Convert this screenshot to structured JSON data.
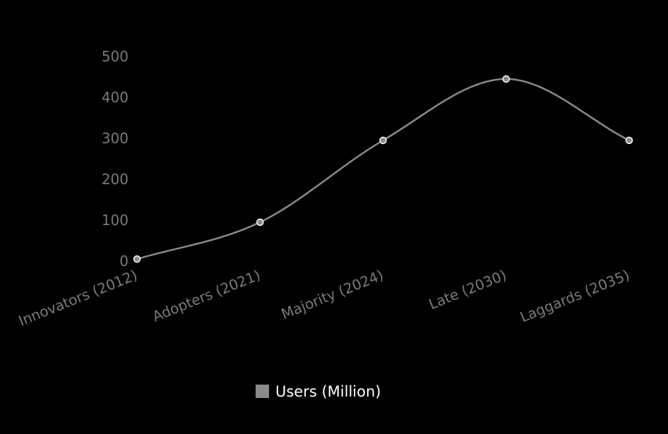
{
  "chart_data": {
    "type": "line",
    "title": "",
    "xlabel": "",
    "ylabel": "",
    "categories": [
      "Innovators (2012)",
      "Adopters (2021)",
      "Majority (2024)",
      "Late (2030)",
      "Laggards (2035)"
    ],
    "series": [
      {
        "name": "Users (Million)",
        "values": [
          5,
          95,
          295,
          445,
          295
        ],
        "color": "#8a8a8a"
      }
    ],
    "ylim": [
      0,
      500
    ],
    "yticks": [
      0,
      100,
      200,
      300,
      400,
      500
    ],
    "yticks_labels": [
      "0",
      "100",
      "200",
      "300",
      "400",
      "500"
    ],
    "grid": false,
    "legend": "bottom"
  },
  "colors": {
    "background": "#000000",
    "line": "#8a8a8a",
    "point_fill": "#8a8a8a",
    "point_stroke": "#ffffff",
    "tick_text": "#7a7a7a",
    "legend_text": "#ffffff"
  }
}
